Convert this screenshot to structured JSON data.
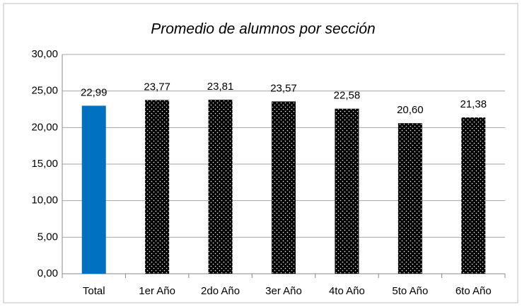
{
  "chart_data": {
    "type": "bar",
    "title": "Promedio de alumnos por sección",
    "categories": [
      "Total",
      "1er Año",
      "2do Año",
      "3er Año",
      "4to Año",
      "5to Año",
      "6to Año"
    ],
    "values": [
      22.99,
      23.77,
      23.81,
      23.57,
      22.58,
      20.6,
      21.38
    ],
    "value_labels": [
      "22,99",
      "23,77",
      "23,81",
      "23,57",
      "22,58",
      "20,60",
      "21,38"
    ],
    "colors": [
      "#0070c0",
      "#5b8fd6",
      "#5b8fd6",
      "#5b8fd6",
      "#5b8fd6",
      "#5b8fd6",
      "#5b8fd6"
    ],
    "patterns": [
      "solid",
      "dots",
      "dots",
      "dots",
      "dots",
      "dots",
      "dots"
    ],
    "ylim": [
      0,
      30
    ],
    "yticks": [
      {
        "value": 0,
        "label": "0,00"
      },
      {
        "value": 5,
        "label": "5,00"
      },
      {
        "value": 10,
        "label": "10,00"
      },
      {
        "value": 15,
        "label": "15,00"
      },
      {
        "value": 20,
        "label": "20,00"
      },
      {
        "value": 25,
        "label": "25,00"
      },
      {
        "value": 30,
        "label": "30,00"
      }
    ],
    "grid": true
  }
}
